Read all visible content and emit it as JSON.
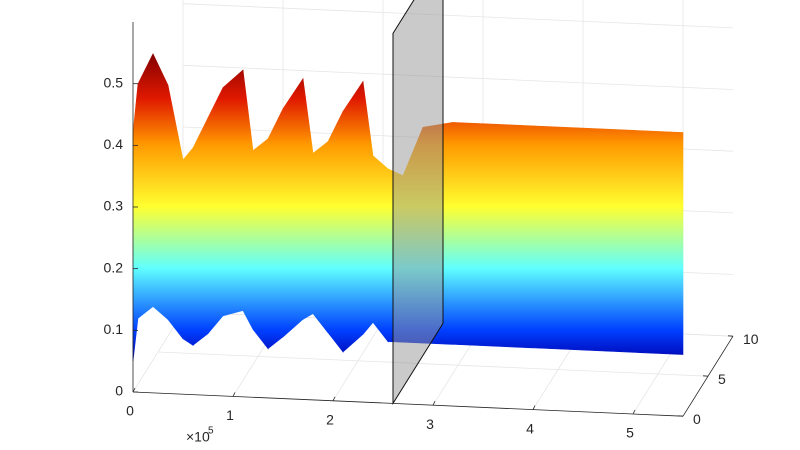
{
  "chart_data": {
    "type": "surface3d",
    "xlim": [
      0,
      5.5
    ],
    "xticks": [
      0,
      1,
      2,
      3,
      4,
      5
    ],
    "x_multiplier": {
      "base": "×10",
      "exponent": 5
    },
    "ylim": [
      0,
      10
    ],
    "yticks": [
      0,
      5,
      10
    ],
    "zlim": [
      0,
      0.6
    ],
    "zticks": [
      0,
      0.1,
      0.2,
      0.3,
      0.4,
      0.5
    ],
    "plane_x": 2.6,
    "surface": {
      "x": [
        0,
        0.05,
        0.2,
        0.35,
        0.5,
        0.6,
        0.75,
        0.9,
        1.1,
        1.2,
        1.35,
        1.5,
        1.7,
        1.8,
        1.95,
        2.1,
        2.3,
        2.4,
        2.55,
        2.7,
        2.9,
        3.2,
        4,
        5,
        5.5
      ],
      "z_top": [
        0.42,
        0.5,
        0.55,
        0.5,
        0.38,
        0.4,
        0.45,
        0.5,
        0.53,
        0.4,
        0.42,
        0.47,
        0.52,
        0.4,
        0.42,
        0.47,
        0.52,
        0.4,
        0.38,
        0.37,
        0.45,
        0.46,
        0.46,
        0.46,
        0.46
      ],
      "z_bottom": [
        0.05,
        0.12,
        0.14,
        0.12,
        0.09,
        0.08,
        0.1,
        0.13,
        0.14,
        0.11,
        0.08,
        0.1,
        0.13,
        0.14,
        0.11,
        0.08,
        0.11,
        0.13,
        0.1,
        0.1,
        0.1,
        0.1,
        0.1,
        0.1,
        0.1
      ]
    }
  }
}
